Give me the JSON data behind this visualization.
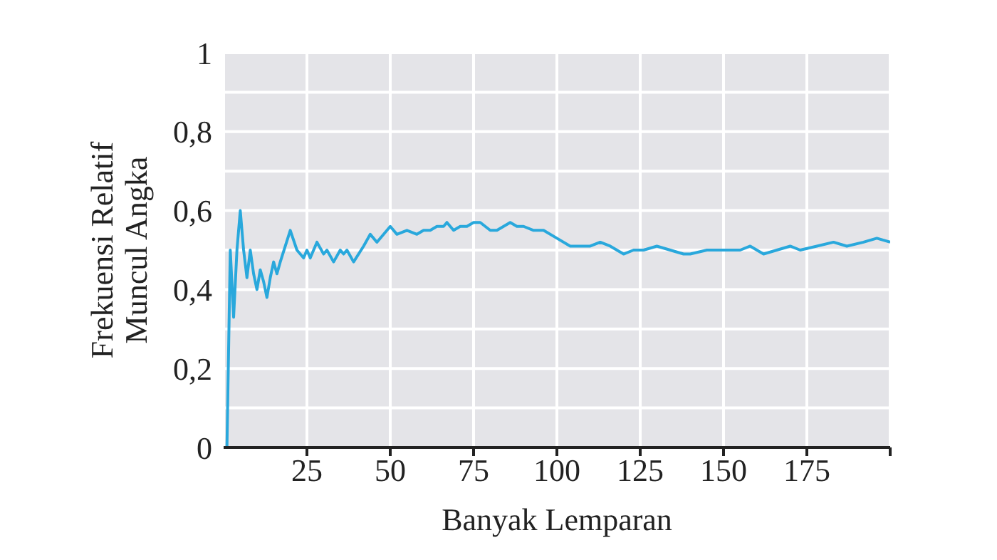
{
  "chart_data": {
    "type": "line",
    "xlabel": "Banyak Lemparan",
    "ylabel": "Frekuensi Relatif\nMuncul Angka",
    "x": [
      1,
      2,
      3,
      4,
      5,
      6,
      7,
      8,
      9,
      10,
      11,
      12,
      13,
      14,
      15,
      16,
      17,
      20,
      22,
      24,
      25,
      26,
      28,
      30,
      31,
      33,
      35,
      36,
      37,
      39,
      42,
      44,
      46,
      50,
      52,
      55,
      58,
      60,
      62,
      64,
      66,
      67,
      69,
      71,
      73,
      75,
      77,
      80,
      82,
      86,
      88,
      90,
      93,
      96,
      100,
      104,
      106,
      110,
      113,
      116,
      120,
      123,
      126,
      130,
      134,
      138,
      140,
      145,
      150,
      155,
      158,
      162,
      166,
      170,
      173,
      178,
      183,
      187,
      192,
      196,
      200
    ],
    "series": [
      {
        "color": "#29a8dc",
        "values": [
          0,
          0.5,
          0.33,
          0.5,
          0.6,
          0.5,
          0.43,
          0.5,
          0.44,
          0.4,
          0.45,
          0.42,
          0.38,
          0.43,
          0.47,
          0.44,
          0.47,
          0.55,
          0.5,
          0.48,
          0.5,
          0.48,
          0.52,
          0.49,
          0.5,
          0.47,
          0.5,
          0.49,
          0.5,
          0.47,
          0.51,
          0.54,
          0.52,
          0.56,
          0.54,
          0.55,
          0.54,
          0.55,
          0.55,
          0.56,
          0.56,
          0.57,
          0.55,
          0.56,
          0.56,
          0.57,
          0.57,
          0.55,
          0.55,
          0.57,
          0.56,
          0.56,
          0.55,
          0.55,
          0.53,
          0.51,
          0.51,
          0.51,
          0.52,
          0.51,
          0.49,
          0.5,
          0.5,
          0.51,
          0.5,
          0.49,
          0.49,
          0.5,
          0.5,
          0.5,
          0.51,
          0.49,
          0.5,
          0.51,
          0.5,
          0.51,
          0.52,
          0.51,
          0.52,
          0.53,
          0.52
        ]
      }
    ],
    "xlim": [
      0,
      200
    ],
    "xticks": [
      25,
      50,
      75,
      100,
      125,
      150,
      175,
      {
        "value": 200,
        "label": null
      }
    ],
    "ylim": [
      0,
      1
    ],
    "yticks": [
      0,
      {
        "value": 0.1,
        "label": null
      },
      {
        "value": 0.2,
        "label": "0,2"
      },
      {
        "value": 0.3,
        "label": null
      },
      {
        "value": 0.4,
        "label": "0,4"
      },
      {
        "value": 0.5,
        "label": null
      },
      {
        "value": 0.6,
        "label": "0,6"
      },
      {
        "value": 0.7,
        "label": null
      },
      {
        "value": 0.8,
        "label": "0,8"
      },
      {
        "value": 0.9,
        "label": null
      },
      1
    ],
    "grid": true,
    "legend": false
  }
}
